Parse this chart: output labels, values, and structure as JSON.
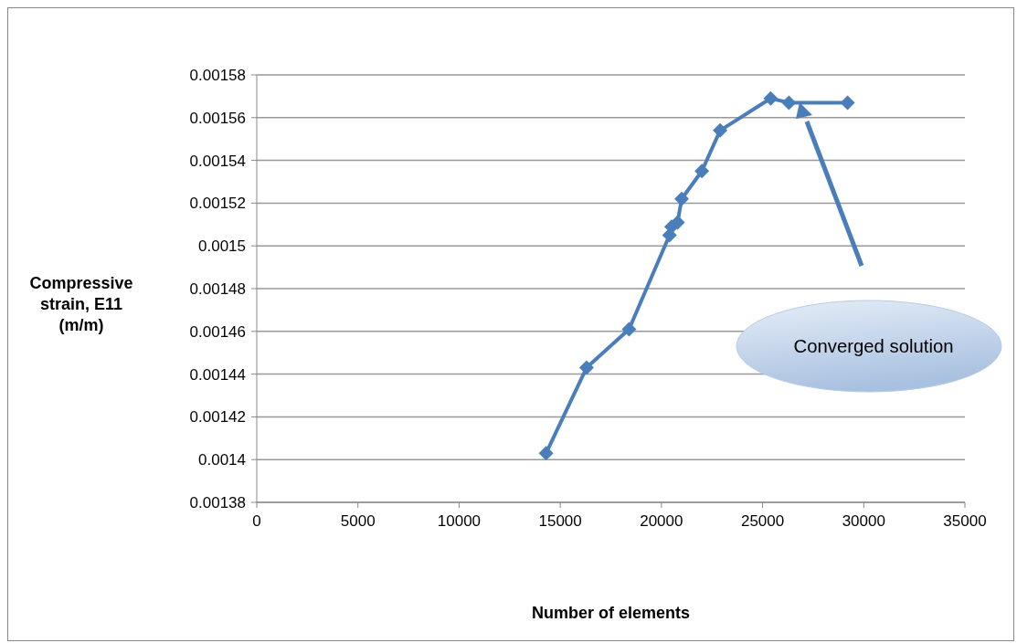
{
  "chart_data": {
    "type": "line",
    "xlabel": "Number of elements",
    "ylabel": "Compressive strain, E11 (m/m)",
    "x": [
      14300,
      16300,
      18400,
      20400,
      20500,
      20800,
      21000,
      22000,
      22900,
      25400,
      26300,
      29200
    ],
    "series": [
      {
        "color": "#4a7ebb",
        "values": [
          0.001403,
          0.001443,
          0.001461,
          0.001505,
          0.001509,
          0.001511,
          0.001522,
          0.001535,
          0.001554,
          0.001569,
          0.001567,
          0.001567
        ]
      }
    ],
    "xlim": [
      0,
      35000
    ],
    "xticks": [
      0,
      5000,
      10000,
      15000,
      20000,
      25000,
      30000,
      35000
    ],
    "ylim": [
      0.00138,
      0.00158
    ],
    "yticks": [
      0.00138,
      0.0014,
      0.00142,
      0.00144,
      0.00146,
      0.00148,
      0.0015,
      0.00152,
      0.00154,
      0.00156,
      0.00158
    ],
    "grid": "y",
    "marker": "diamond",
    "line_style": "solid",
    "legend": false,
    "annotations": [
      "Converged solution"
    ]
  }
}
